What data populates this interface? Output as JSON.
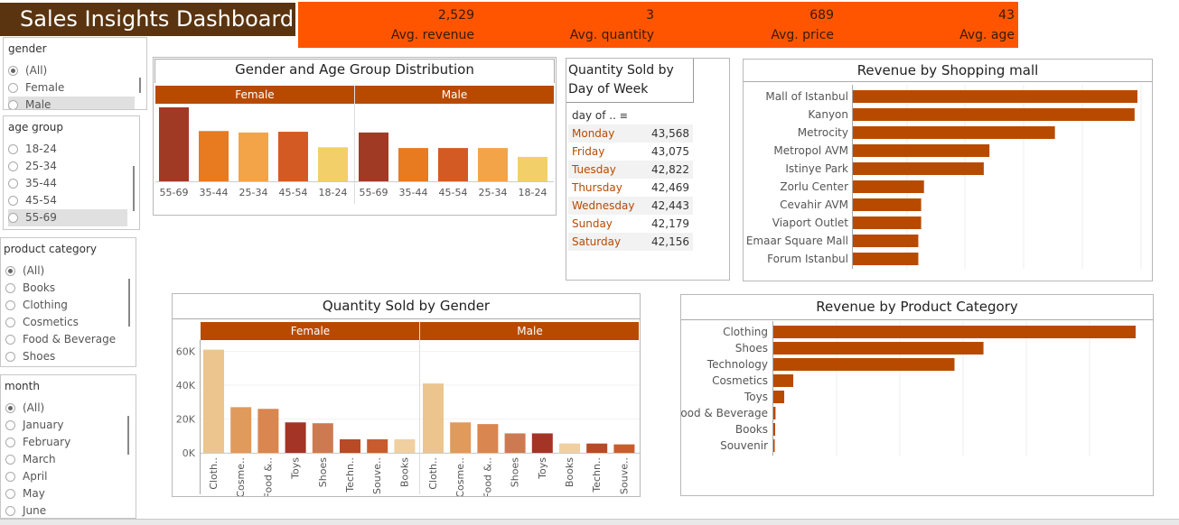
{
  "dashboard": {
    "title": "Sales Insights Dashboard"
  },
  "kpis": [
    {
      "value": "2,529",
      "label": "Avg. revenue"
    },
    {
      "value": "3",
      "label": "Avg. quantity"
    },
    {
      "value": "689",
      "label": "Avg. price"
    },
    {
      "value": "43",
      "label": "Avg. age"
    }
  ],
  "filters": {
    "gender": {
      "title": "gender",
      "options": [
        "(All)",
        "Female",
        "Male"
      ],
      "selected": "(All)"
    },
    "age_group": {
      "title": "age group",
      "options": [
        "18-24",
        "25-34",
        "35-44",
        "45-54",
        "55-69"
      ]
    },
    "product_category": {
      "title": "product category",
      "options": [
        "(All)",
        "Books",
        "Clothing",
        "Cosmetics",
        "Food & Beverage",
        "Shoes"
      ],
      "selected": "(All)"
    },
    "month": {
      "title": "month",
      "options": [
        "(All)",
        "January",
        "February",
        "March",
        "April",
        "May",
        "June"
      ],
      "selected": "(All)"
    }
  },
  "colors": {
    "accent": "#b84a00",
    "kpi_band": "#ff5500",
    "title_bg": "#5a3410"
  },
  "chart_data": [
    {
      "type": "bar",
      "title": "Gender and Age Group Distribution",
      "panels": [
        {
          "name": "Female",
          "categories": [
            "55-69",
            "35-44",
            "25-34",
            "45-54",
            "18-24"
          ],
          "values": [
            100,
            68,
            66,
            67,
            46
          ],
          "colors": [
            "#a13a24",
            "#e87a20",
            "#f4a448",
            "#d45a24",
            "#f3cf6a"
          ]
        },
        {
          "name": "Male",
          "categories": [
            "55-69",
            "35-44",
            "45-54",
            "25-34",
            "18-24"
          ],
          "values": [
            66,
            45,
            45,
            45,
            33
          ],
          "colors": [
            "#a13a24",
            "#e87a20",
            "#d45a24",
            "#f4a448",
            "#f3cf6a"
          ]
        }
      ]
    },
    {
      "type": "table",
      "title": "Quantity Sold by Day of Week",
      "header": "day of ..",
      "rows": [
        {
          "day": "Monday",
          "value": "43,568"
        },
        {
          "day": "Friday",
          "value": "43,075"
        },
        {
          "day": "Tuesday",
          "value": "42,822"
        },
        {
          "day": "Thursday",
          "value": "42,469"
        },
        {
          "day": "Wednesday",
          "value": "42,443"
        },
        {
          "day": "Sunday",
          "value": "42,179"
        },
        {
          "day": "Saturday",
          "value": "42,156"
        }
      ]
    },
    {
      "type": "bar",
      "orientation": "horizontal",
      "title": "Revenue by Shopping mall",
      "categories": [
        "Mall of Istanbul",
        "Kanyon",
        "Metrocity",
        "Metropol AVM",
        "Istinye Park",
        "Zorlu Center",
        "Cevahir AVM",
        "Viaport Outlet",
        "Emaar Square Mall",
        "Forum Istanbul"
      ],
      "values": [
        100,
        99,
        71,
        48,
        46,
        25,
        24,
        24,
        23,
        23
      ],
      "color": "#b84a00"
    },
    {
      "type": "bar",
      "title": "Quantity Sold by Gender",
      "yticks": [
        "60K",
        "40K",
        "20K",
        "0K"
      ],
      "ylim": [
        0,
        64000
      ],
      "panels": [
        {
          "name": "Female",
          "categories": [
            "Cloth..",
            "Cosme..",
            "Food &..",
            "Toys",
            "Shoes",
            "Techn..",
            "Souve..",
            "Books"
          ],
          "values": [
            61000,
            27000,
            26000,
            18000,
            17500,
            8000,
            8000,
            8000
          ],
          "colors": [
            "#ecc58e",
            "#e09a5c",
            "#d98650",
            "#a33426",
            "#cd7a52",
            "#b84a26",
            "#c85c2e",
            "#f0cfa0"
          ]
        },
        {
          "name": "Male",
          "categories": [
            "Cloth..",
            "Cosme..",
            "Food &..",
            "Shoes",
            "Toys",
            "Books",
            "Techn..",
            "Souve.."
          ],
          "values": [
            41000,
            18000,
            17000,
            11500,
            11500,
            5500,
            5500,
            5000
          ],
          "colors": [
            "#ecc58e",
            "#e09a5c",
            "#d98650",
            "#cd7a52",
            "#a33426",
            "#f0cfa0",
            "#b84a26",
            "#c85c2e"
          ]
        }
      ]
    },
    {
      "type": "bar",
      "orientation": "horizontal",
      "title": "Revenue by Product Category",
      "categories": [
        "Clothing",
        "Shoes",
        "Technology",
        "Cosmetics",
        "Toys",
        "Food & Beverage",
        "Books",
        "Souvenir"
      ],
      "values": [
        100,
        58,
        50,
        5.5,
        3,
        0.6,
        0.5,
        0.3
      ],
      "color": "#b84a00"
    }
  ]
}
